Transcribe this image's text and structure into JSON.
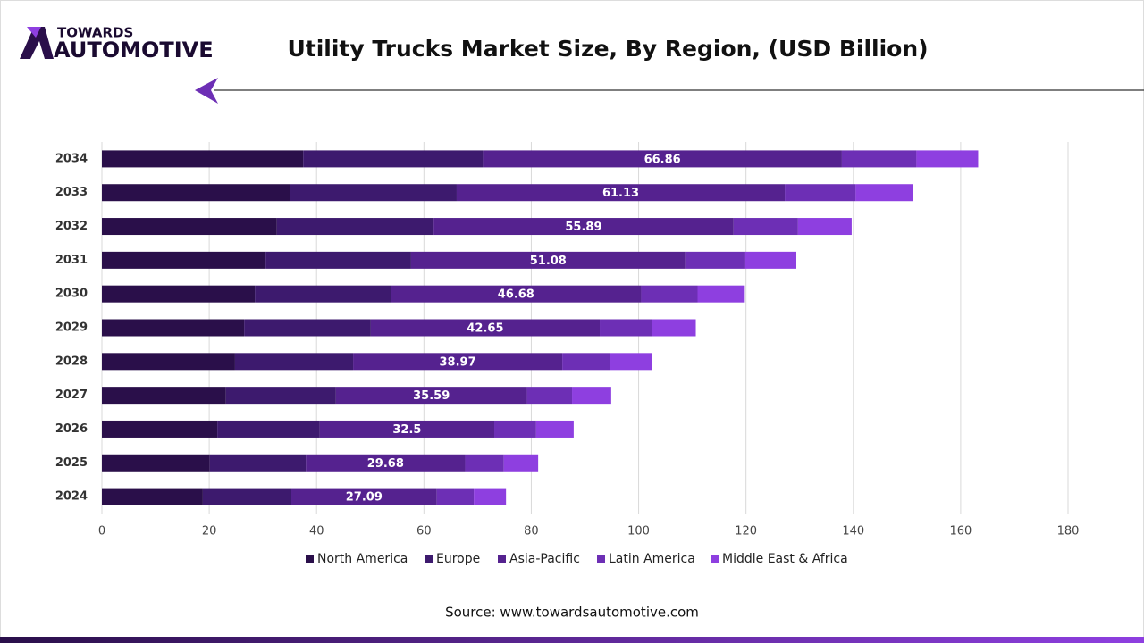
{
  "logo": {
    "line1": "TOWARDS",
    "line2": "AUTOMOTIVE"
  },
  "chart_data": {
    "type": "stacked-barh",
    "title": "Utility Trucks Market Size, By Region, (USD Billion)",
    "source": "Source: www.towardsautomotive.com",
    "categories": [
      "2024",
      "2025",
      "2026",
      "2027",
      "2028",
      "2029",
      "2030",
      "2031",
      "2032",
      "2033",
      "2034"
    ],
    "series": [
      {
        "name": "North America",
        "color": "#2a0f4a",
        "values": [
          18.8,
          20.1,
          21.5,
          23.1,
          24.8,
          26.5,
          28.5,
          30.5,
          32.6,
          35.0,
          37.5
        ]
      },
      {
        "name": "Europe",
        "color": "#3d1a6e",
        "values": [
          16.5,
          17.9,
          19.1,
          20.5,
          22.0,
          23.6,
          25.3,
          27.1,
          29.2,
          31.1,
          33.5
        ]
      },
      {
        "name": "Asia-Pacific",
        "color": "#55228f",
        "labels": true,
        "values": [
          27.09,
          29.68,
          32.5,
          35.59,
          38.97,
          42.65,
          46.68,
          51.08,
          55.89,
          61.13,
          66.86
        ]
      },
      {
        "name": "Latin America",
        "color": "#6d2fb5",
        "values": [
          6.9,
          7.2,
          7.8,
          8.4,
          8.9,
          9.8,
          10.5,
          11.2,
          12.0,
          13.2,
          13.9
        ]
      },
      {
        "name": "Middle East & Africa",
        "color": "#8e3fe0",
        "values": [
          6.0,
          6.4,
          7.0,
          7.3,
          7.9,
          8.1,
          8.8,
          9.5,
          10.0,
          10.6,
          11.5
        ]
      }
    ],
    "xlim": [
      0,
      180
    ],
    "xticks": [
      0,
      20,
      40,
      60,
      80,
      100,
      120,
      140,
      160,
      180
    ],
    "grid": true
  }
}
